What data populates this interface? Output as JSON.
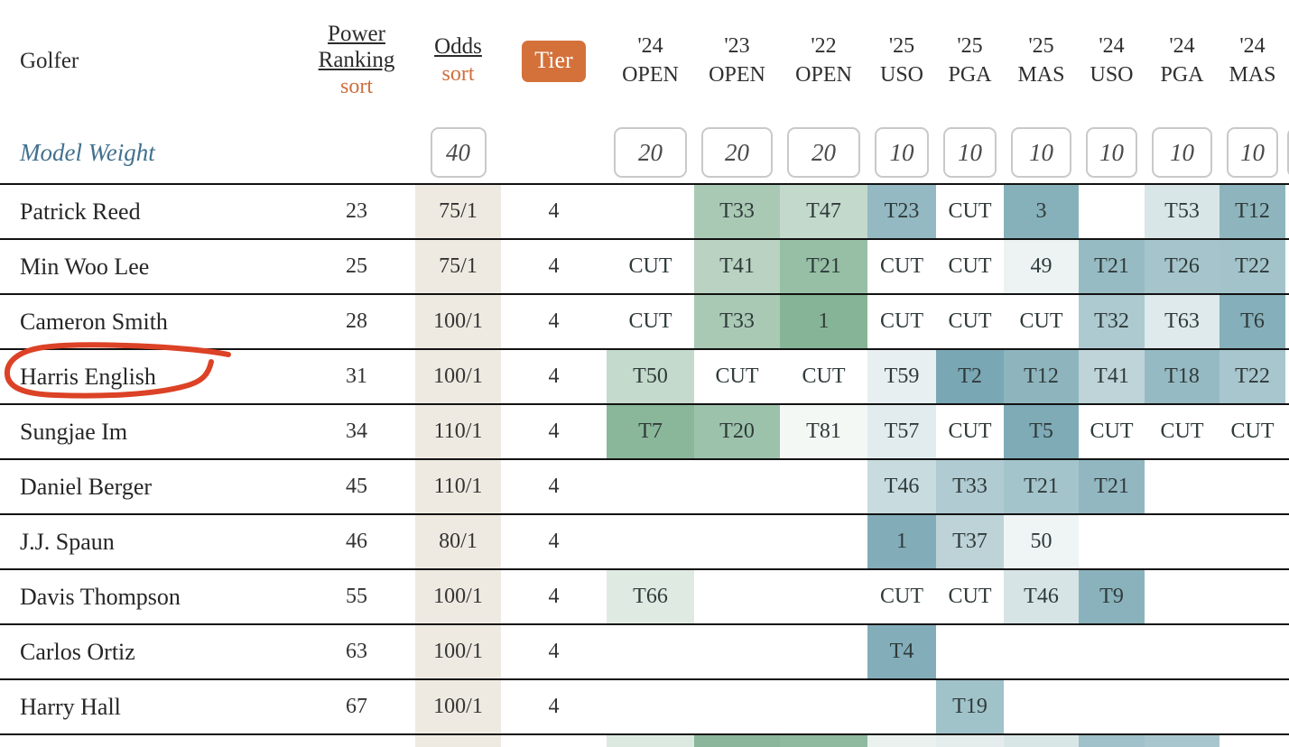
{
  "table": {
    "columns": {
      "golfer_label": "Golfer",
      "power_label": "Power Ranking",
      "power_sort": "sort",
      "odds_label": "Odds",
      "odds_sort": "sort",
      "tier_label": "Tier",
      "tournaments": [
        {
          "year": "'24",
          "name": "OPEN"
        },
        {
          "year": "'23",
          "name": "OPEN"
        },
        {
          "year": "'22",
          "name": "OPEN"
        },
        {
          "year": "'25",
          "name": "USO"
        },
        {
          "year": "'25",
          "name": "PGA"
        },
        {
          "year": "'25",
          "name": "MAS"
        },
        {
          "year": "'24",
          "name": "USO"
        },
        {
          "year": "'24",
          "name": "PGA"
        },
        {
          "year": "'24",
          "name": "MAS"
        }
      ]
    },
    "model_weight": {
      "label": "Model Weight",
      "odds_weight": "40",
      "weights": [
        "20",
        "20",
        "20",
        "10",
        "10",
        "10",
        "10",
        "10",
        "10"
      ]
    },
    "rows": [
      {
        "golfer": "Patrick Reed",
        "power": "23",
        "odds": "75/1",
        "tier": "4",
        "results": [
          {
            "t": "",
            "c": ""
          },
          {
            "t": "T33",
            "c": "#a9c9b5"
          },
          {
            "t": "T47",
            "c": "#c3d9cb"
          },
          {
            "t": "T23",
            "c": "#94b9c2"
          },
          {
            "t": "CUT",
            "c": ""
          },
          {
            "t": "3",
            "c": "#87b1ba"
          },
          {
            "t": "",
            "c": ""
          },
          {
            "t": "T53",
            "c": "#d9e6e8"
          },
          {
            "t": "T12",
            "c": "#8eb5be"
          }
        ]
      },
      {
        "golfer": "Min Woo Lee",
        "power": "25",
        "odds": "75/1",
        "tier": "4",
        "results": [
          {
            "t": "CUT",
            "c": ""
          },
          {
            "t": "T41",
            "c": "#b9d2c2"
          },
          {
            "t": "T21",
            "c": "#96bfa5"
          },
          {
            "t": "CUT",
            "c": ""
          },
          {
            "t": "CUT",
            "c": ""
          },
          {
            "t": "49",
            "c": "#edf3f2"
          },
          {
            "t": "T21",
            "c": "#97bbc3"
          },
          {
            "t": "T26",
            "c": "#a5c4cb"
          },
          {
            "t": "T22",
            "c": "#a3c3ca"
          }
        ]
      },
      {
        "golfer": "Cameron Smith",
        "power": "28",
        "odds": "100/1",
        "tier": "4",
        "results": [
          {
            "t": "CUT",
            "c": ""
          },
          {
            "t": "T33",
            "c": "#a9c9b5"
          },
          {
            "t": "1",
            "c": "#86b496"
          },
          {
            "t": "CUT",
            "c": ""
          },
          {
            "t": "CUT",
            "c": ""
          },
          {
            "t": "CUT",
            "c": ""
          },
          {
            "t": "T32",
            "c": "#aecad1"
          },
          {
            "t": "T63",
            "c": "#dfeaec"
          },
          {
            "t": "T6",
            "c": "#85afba"
          }
        ]
      },
      {
        "golfer": "Harris English",
        "power": "31",
        "odds": "100/1",
        "tier": "4",
        "results": [
          {
            "t": "T50",
            "c": "#c4dacc"
          },
          {
            "t": "CUT",
            "c": ""
          },
          {
            "t": "CUT",
            "c": ""
          },
          {
            "t": "T59",
            "c": "#e7eff0"
          },
          {
            "t": "T2",
            "c": "#7aa7b4"
          },
          {
            "t": "T12",
            "c": "#8eb5be"
          },
          {
            "t": "T41",
            "c": "#bed4d8"
          },
          {
            "t": "T18",
            "c": "#96bac3"
          },
          {
            "t": "T22",
            "c": "#a8c6cd"
          }
        ]
      },
      {
        "golfer": "Sungjae Im",
        "power": "34",
        "odds": "110/1",
        "tier": "4",
        "results": [
          {
            "t": "T7",
            "c": "#8ab79a"
          },
          {
            "t": "T20",
            "c": "#9dc2ab"
          },
          {
            "t": "T81",
            "c": "#f4f8f5"
          },
          {
            "t": "T57",
            "c": "#e2ecee"
          },
          {
            "t": "CUT",
            "c": ""
          },
          {
            "t": "T5",
            "c": "#7fabb7"
          },
          {
            "t": "CUT",
            "c": ""
          },
          {
            "t": "CUT",
            "c": ""
          },
          {
            "t": "CUT",
            "c": ""
          }
        ]
      },
      {
        "golfer": "Daniel Berger",
        "power": "45",
        "odds": "110/1",
        "tier": "4",
        "results": [
          {
            "t": "",
            "c": ""
          },
          {
            "t": "",
            "c": ""
          },
          {
            "t": "",
            "c": ""
          },
          {
            "t": "T46",
            "c": "#c8dbdf"
          },
          {
            "t": "T33",
            "c": "#b0cbd2"
          },
          {
            "t": "T21",
            "c": "#a4c4cb"
          },
          {
            "t": "T21",
            "c": "#92b7c1"
          },
          {
            "t": "",
            "c": ""
          },
          {
            "t": "",
            "c": ""
          }
        ]
      },
      {
        "golfer": "J.J. Spaun",
        "power": "46",
        "odds": "80/1",
        "tier": "4",
        "results": [
          {
            "t": "",
            "c": ""
          },
          {
            "t": "",
            "c": ""
          },
          {
            "t": "",
            "c": ""
          },
          {
            "t": "1",
            "c": "#82acb8"
          },
          {
            "t": "T37",
            "c": "#bdd3d8"
          },
          {
            "t": "50",
            "c": "#eff4f4"
          },
          {
            "t": "",
            "c": ""
          },
          {
            "t": "",
            "c": ""
          },
          {
            "t": "",
            "c": ""
          }
        ]
      },
      {
        "golfer": "Davis Thompson",
        "power": "55",
        "odds": "100/1",
        "tier": "4",
        "results": [
          {
            "t": "T66",
            "c": "#dfeae3"
          },
          {
            "t": "",
            "c": ""
          },
          {
            "t": "",
            "c": ""
          },
          {
            "t": "CUT",
            "c": ""
          },
          {
            "t": "CUT",
            "c": ""
          },
          {
            "t": "T46",
            "c": "#d6e4e6"
          },
          {
            "t": "T9",
            "c": "#8ab2bc"
          },
          {
            "t": "",
            "c": ""
          },
          {
            "t": "",
            "c": ""
          }
        ]
      },
      {
        "golfer": "Carlos Ortiz",
        "power": "63",
        "odds": "100/1",
        "tier": "4",
        "results": [
          {
            "t": "",
            "c": ""
          },
          {
            "t": "",
            "c": ""
          },
          {
            "t": "",
            "c": ""
          },
          {
            "t": "T4",
            "c": "#83adb9"
          },
          {
            "t": "",
            "c": ""
          },
          {
            "t": "",
            "c": ""
          },
          {
            "t": "",
            "c": ""
          },
          {
            "t": "",
            "c": ""
          },
          {
            "t": "",
            "c": ""
          }
        ]
      },
      {
        "golfer": "Harry Hall",
        "power": "67",
        "odds": "100/1",
        "tier": "4",
        "results": [
          {
            "t": "",
            "c": ""
          },
          {
            "t": "",
            "c": ""
          },
          {
            "t": "",
            "c": ""
          },
          {
            "t": "",
            "c": ""
          },
          {
            "t": "T19",
            "c": "#a0c2c9"
          },
          {
            "t": "",
            "c": ""
          },
          {
            "t": "",
            "c": ""
          },
          {
            "t": "",
            "c": ""
          },
          {
            "t": "",
            "c": ""
          }
        ]
      }
    ],
    "partial_row_colors": [
      "#dce9e1",
      "#8cb69b",
      "#8fba9f",
      "#eaf1ef",
      "#e4edec",
      "#d9e6e6",
      "#a0c1c9",
      "#a8c6cd",
      ""
    ]
  },
  "annotation": {
    "type": "hand-drawn-circle",
    "target": "Harris English",
    "color": "#dc4226"
  },
  "colors": {
    "sort_accent": "#d06e3c",
    "tier_button": "#d4713a",
    "odds_column_bg": "#efeae1",
    "model_weight_text": "#41708e",
    "row_border": "#121212"
  }
}
